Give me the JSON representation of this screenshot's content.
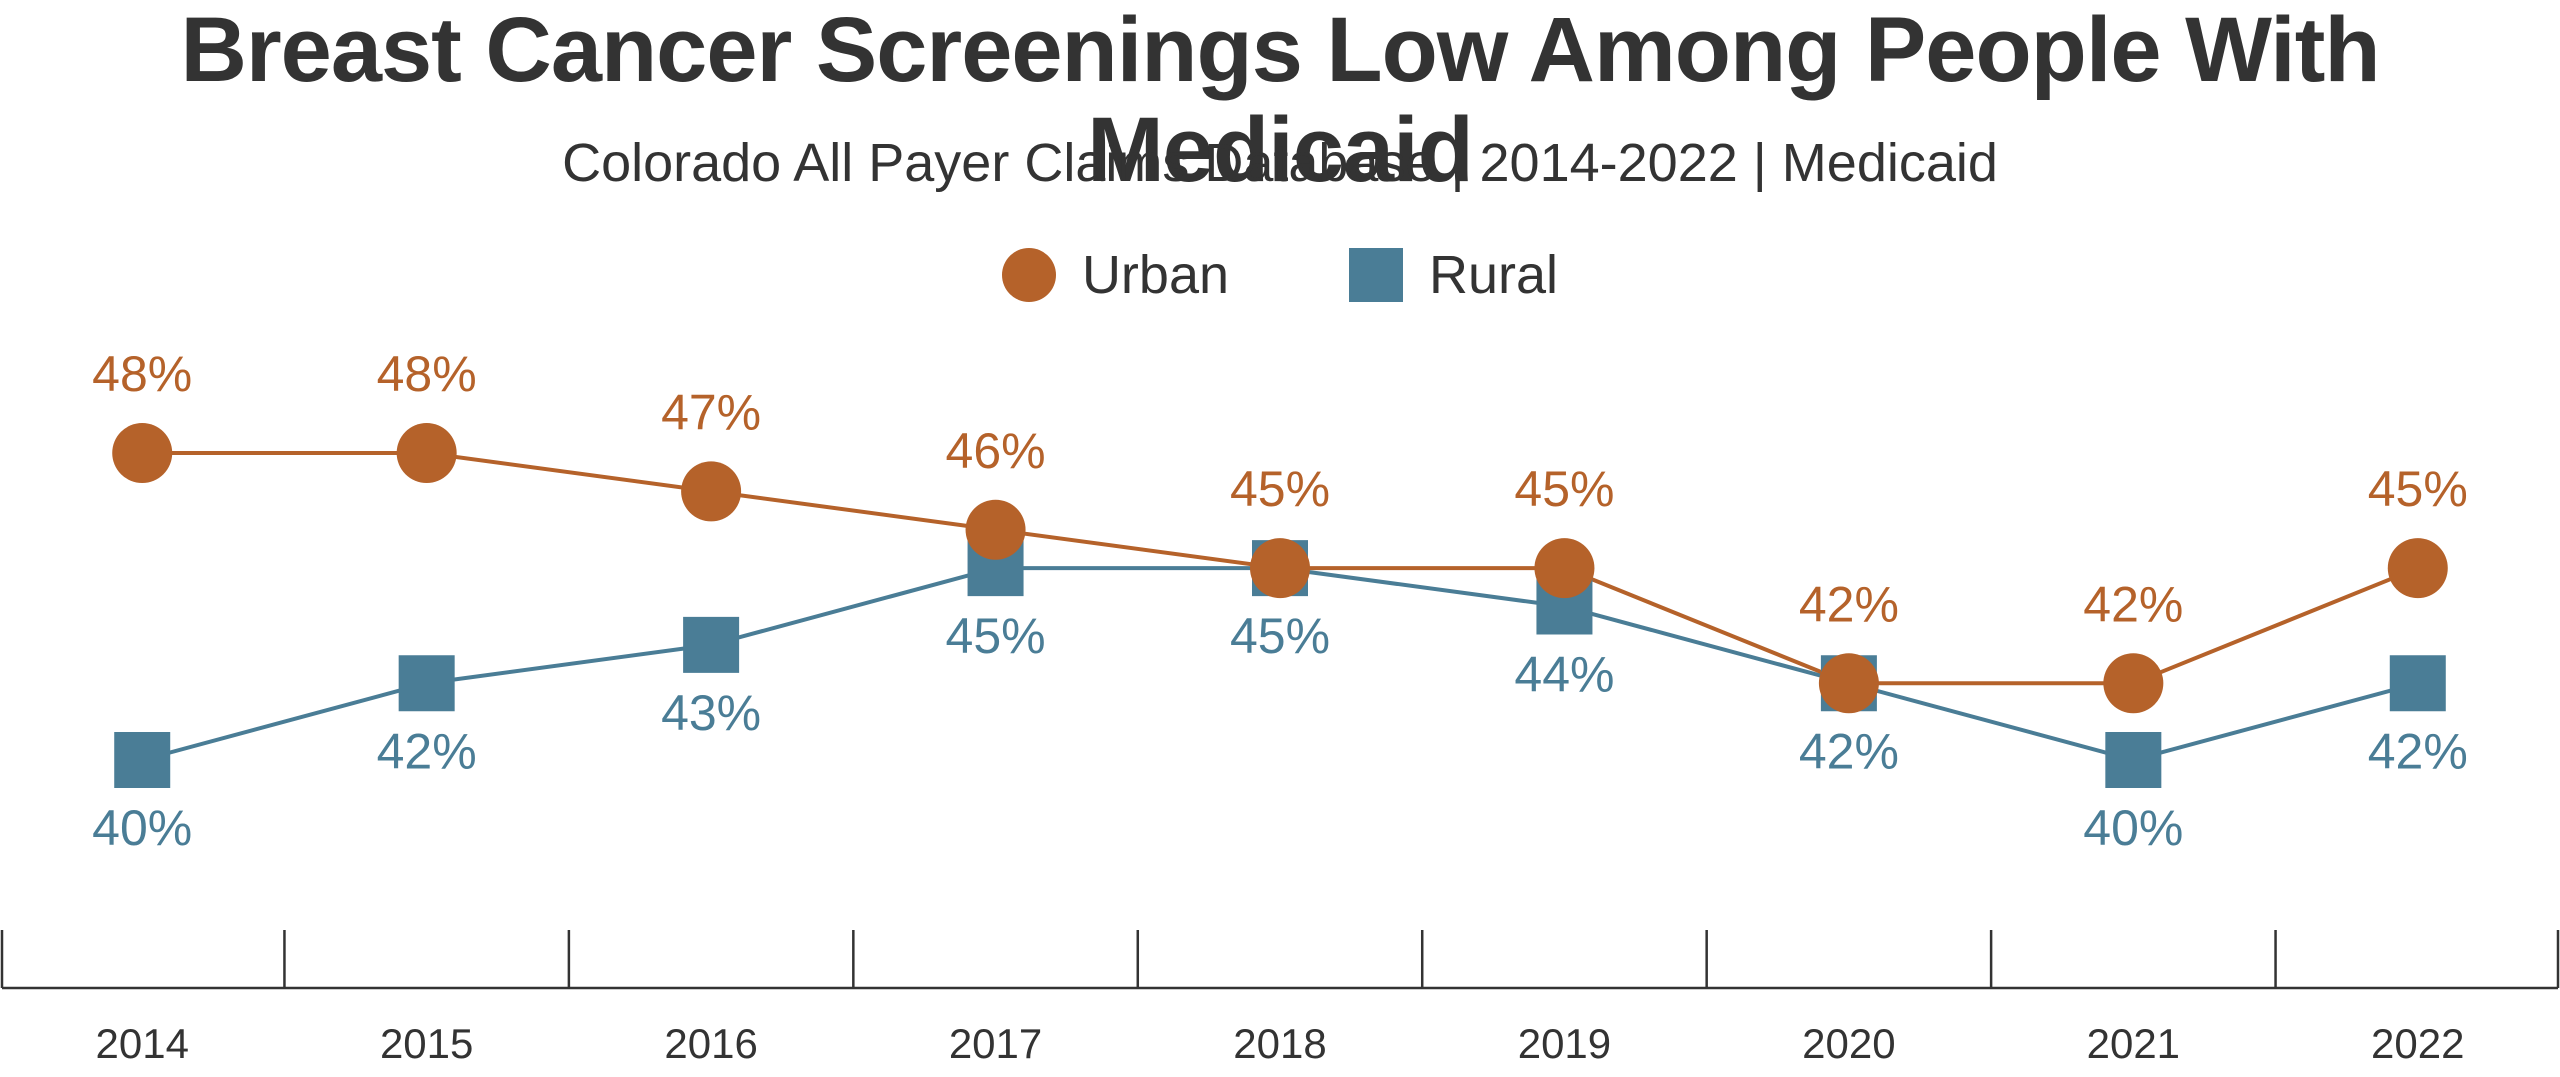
{
  "chart_data": {
    "type": "line",
    "title": "Breast Cancer Screenings Low Among People With Medicaid",
    "subtitle": "Colorado All Payer Claims Database | 2014-2022 | Medicaid",
    "categories": [
      "2014",
      "2015",
      "2016",
      "2017",
      "2018",
      "2019",
      "2020",
      "2021",
      "2022"
    ],
    "series": [
      {
        "name": "Urban",
        "marker": "circle",
        "color": "#B5622A",
        "values": [
          48,
          48,
          47,
          46,
          45,
          45,
          42,
          42,
          45
        ],
        "labels": [
          "48%",
          "48%",
          "47%",
          "46%",
          "45%",
          "45%",
          "42%",
          "42%",
          "45%"
        ],
        "label_position": "above"
      },
      {
        "name": "Rural",
        "marker": "square",
        "color": "#4A7D96",
        "values": [
          40,
          42,
          43,
          45,
          45,
          44,
          42,
          40,
          42
        ],
        "labels": [
          "40%",
          "42%",
          "43%",
          "45%",
          "45%",
          "44%",
          "42%",
          "40%",
          "42%"
        ],
        "label_position": "below"
      }
    ],
    "ylim": [
      38,
      50
    ],
    "grid": false,
    "legend": "top-center",
    "axis_color": "#333333"
  }
}
